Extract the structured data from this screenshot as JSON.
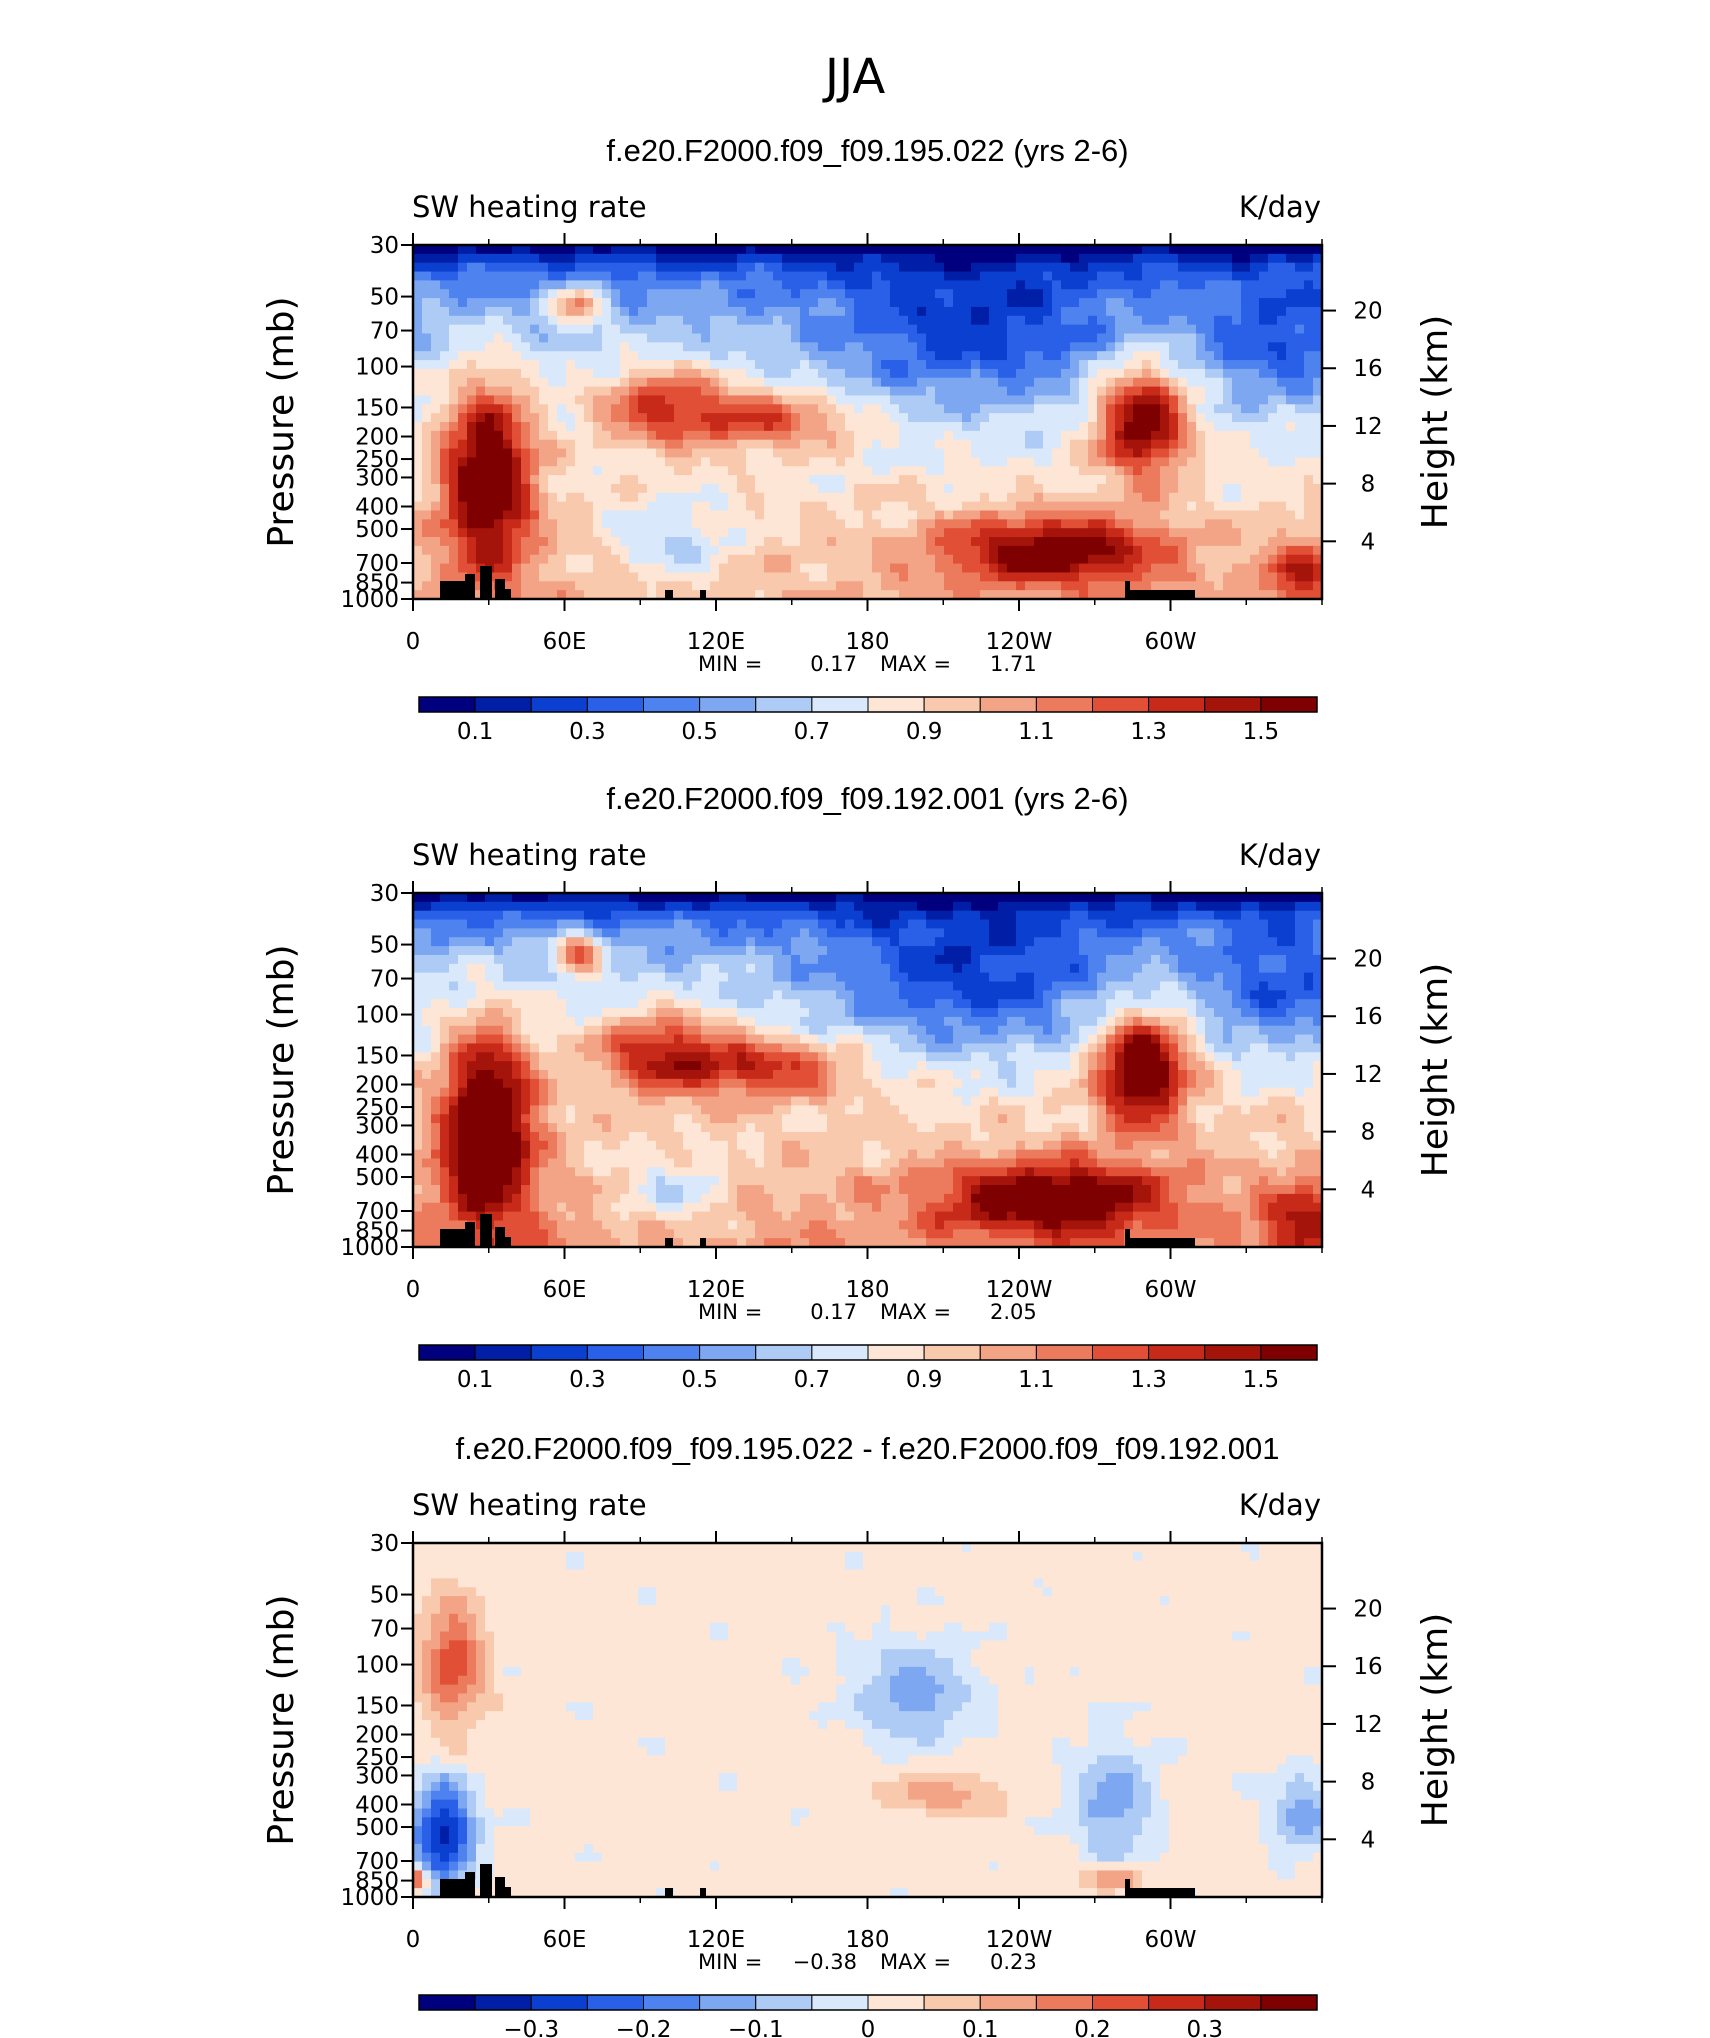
{
  "figure": {
    "supertitle": "JJA",
    "colors": {
      "axis": "#000000",
      "topography": "#000000",
      "colormap": [
        "#00007f",
        "#001ea6",
        "#0a3fd0",
        "#2a5fe8",
        "#4e82ee",
        "#7ea7f2",
        "#aecbf6",
        "#d9e8fb",
        "#fde6d6",
        "#f9c9ae",
        "#f3a486",
        "#ec7a5d",
        "#e04f36",
        "#c72a19",
        "#a5140a",
        "#7f0000"
      ]
    }
  },
  "chart_data": [
    {
      "type": "heatmap",
      "title": "f.e20.F2000.f09_f09.195.022 (yrs 2-6)",
      "field_label": "SW heating rate",
      "units": "K/day",
      "xlabel": "",
      "ylabel": "Pressure (mb)",
      "y2label": "Height (km)",
      "x_tick_labels": [
        "0",
        "60E",
        "120E",
        "180",
        "120W",
        "60W"
      ],
      "y_tick_labels": [
        "30",
        "50",
        "70",
        "100",
        "150",
        "200",
        "250",
        "300",
        "400",
        "500",
        "700",
        "850",
        "1000"
      ],
      "y2_tick_labels": [
        "20",
        "16",
        "12",
        "8",
        "4"
      ],
      "ylim": [
        1000,
        30
      ],
      "log_y": true,
      "stats": {
        "min_label": "MIN =",
        "min": "0.17",
        "max_label": "MAX =",
        "max": "1.71"
      },
      "colorbar": {
        "ticks": [
          "0.1",
          "0.3",
          "0.5",
          "0.7",
          "0.9",
          "1.1",
          "1.3",
          "1.5"
        ],
        "levels": [
          0.1,
          0.3,
          0.5,
          0.7,
          0.9,
          1.1,
          1.3,
          1.5
        ]
      }
    },
    {
      "type": "heatmap",
      "title": "f.e20.F2000.f09_f09.192.001 (yrs 2-6)",
      "field_label": "SW heating rate",
      "units": "K/day",
      "xlabel": "",
      "ylabel": "Pressure (mb)",
      "y2label": "Height (km)",
      "x_tick_labels": [
        "0",
        "60E",
        "120E",
        "180",
        "120W",
        "60W"
      ],
      "y_tick_labels": [
        "30",
        "50",
        "70",
        "100",
        "150",
        "200",
        "250",
        "300",
        "400",
        "500",
        "700",
        "850",
        "1000"
      ],
      "y2_tick_labels": [
        "20",
        "16",
        "12",
        "8",
        "4"
      ],
      "ylim": [
        1000,
        30
      ],
      "log_y": true,
      "stats": {
        "min_label": "MIN =",
        "min": "0.17",
        "max_label": "MAX =",
        "max": "2.05"
      },
      "colorbar": {
        "ticks": [
          "0.1",
          "0.3",
          "0.5",
          "0.7",
          "0.9",
          "1.1",
          "1.3",
          "1.5"
        ],
        "levels": [
          0.1,
          0.3,
          0.5,
          0.7,
          0.9,
          1.1,
          1.3,
          1.5
        ]
      }
    },
    {
      "type": "heatmap",
      "title": "f.e20.F2000.f09_f09.195.022 - f.e20.F2000.f09_f09.192.001",
      "field_label": "SW heating rate",
      "units": "K/day",
      "xlabel": "",
      "ylabel": "Pressure (mb)",
      "y2label": "Height (km)",
      "x_tick_labels": [
        "0",
        "60E",
        "120E",
        "180",
        "120W",
        "60W"
      ],
      "y_tick_labels": [
        "30",
        "50",
        "70",
        "100",
        "150",
        "200",
        "250",
        "300",
        "400",
        "500",
        "700",
        "850",
        "1000"
      ],
      "y2_tick_labels": [
        "20",
        "16",
        "12",
        "8",
        "4"
      ],
      "ylim": [
        1000,
        30
      ],
      "log_y": true,
      "stats": {
        "min_label": "MIN =",
        "min": "−0.38",
        "max_label": "MAX =",
        "max": "0.23"
      },
      "colorbar": {
        "ticks": [
          "−0.3",
          "−0.2",
          "−0.1",
          "0",
          "0.1",
          "0.2",
          "0.3"
        ],
        "levels": [
          -0.3,
          -0.2,
          -0.1,
          0,
          0.1,
          0.2,
          0.3
        ]
      }
    }
  ]
}
